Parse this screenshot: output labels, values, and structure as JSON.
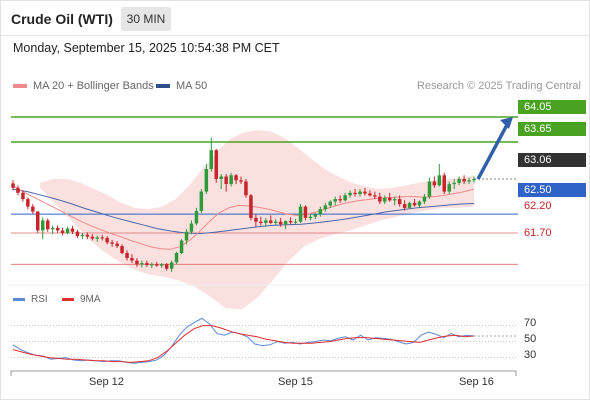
{
  "header": {
    "instrument": "Crude Oil (WTI)",
    "timeframe": "30 MIN",
    "datetime": "Monday, September 15, 2025 10:54:38 PM CET"
  },
  "legend": {
    "ma20_bb": "MA 20 + Bollinger Bands",
    "ma50": "MA 50",
    "credit": "Research © 2025 Trading Central"
  },
  "colors": {
    "up": "#2e9a3a",
    "down": "#c8242c",
    "bollinger": "#f7c6c6",
    "ma20": "#f08a8a",
    "ma50": "#4b66a8",
    "resistance": "#4aa320",
    "pivot": "#2f63c8",
    "support": "#e06a6a",
    "current": "#333333",
    "forecast_arrow": "#2f5fa8",
    "rsi": "#5b8ad8",
    "rsi_ma": "#e03030"
  },
  "levels": {
    "r2": "64.05",
    "r1": "63.65",
    "current": "63.06",
    "pivot": "62.50",
    "s1": "62.20",
    "s2": "61.70"
  },
  "indicator": {
    "rsi_label": "RSI",
    "ma_label": "9MA",
    "levels": [
      "70",
      "50",
      "30"
    ]
  },
  "xaxis": {
    "labels": [
      "Sep 12",
      "Sep 15",
      "Sep 16"
    ]
  },
  "chart_data": {
    "type": "candlestick",
    "title": "Crude Oil (WTI)",
    "timeframe": "30 MIN",
    "ylim": [
      61.45,
      64.4
    ],
    "candles": [
      [
        62.99,
        63.04,
        62.88,
        62.92
      ],
      [
        62.92,
        62.96,
        62.8,
        62.84
      ],
      [
        62.84,
        62.88,
        62.7,
        62.74
      ],
      [
        62.74,
        62.77,
        62.58,
        62.62
      ],
      [
        62.62,
        62.66,
        62.5,
        62.54
      ],
      [
        62.54,
        62.55,
        62.2,
        62.24
      ],
      [
        62.24,
        62.45,
        62.1,
        62.4
      ],
      [
        62.4,
        62.43,
        62.22,
        62.26
      ],
      [
        62.26,
        62.32,
        62.18,
        62.28
      ],
      [
        62.28,
        62.32,
        62.2,
        62.24
      ],
      [
        62.24,
        62.28,
        62.16,
        62.2
      ],
      [
        62.2,
        62.3,
        62.18,
        62.27
      ],
      [
        62.27,
        62.31,
        62.18,
        62.22
      ],
      [
        62.22,
        62.25,
        62.12,
        62.15
      ],
      [
        62.15,
        62.2,
        62.1,
        62.17
      ],
      [
        62.17,
        62.21,
        62.1,
        62.14
      ],
      [
        62.14,
        62.18,
        62.08,
        62.11
      ],
      [
        62.11,
        62.16,
        62.06,
        62.13
      ],
      [
        62.13,
        62.17,
        62.08,
        62.12
      ],
      [
        62.12,
        62.15,
        62.02,
        62.05
      ],
      [
        62.05,
        62.09,
        61.98,
        62.03
      ],
      [
        62.03,
        62.07,
        61.96,
        61.99
      ],
      [
        61.99,
        62.02,
        61.86,
        61.88
      ],
      [
        61.88,
        61.92,
        61.76,
        61.8
      ],
      [
        61.8,
        61.86,
        61.72,
        61.76
      ],
      [
        61.76,
        61.8,
        61.66,
        61.7
      ],
      [
        61.7,
        61.76,
        61.65,
        61.72
      ],
      [
        61.72,
        61.76,
        61.66,
        61.69
      ],
      [
        61.69,
        61.73,
        61.64,
        61.7
      ],
      [
        61.7,
        61.74,
        61.66,
        61.68
      ],
      [
        61.68,
        61.72,
        61.64,
        61.7
      ],
      [
        61.7,
        61.72,
        61.6,
        61.63
      ],
      [
        61.63,
        61.76,
        61.58,
        61.73
      ],
      [
        61.73,
        61.9,
        61.7,
        61.88
      ],
      [
        61.88,
        62.1,
        61.86,
        62.08
      ],
      [
        62.08,
        62.26,
        62.02,
        62.22
      ],
      [
        62.22,
        62.4,
        62.18,
        62.35
      ],
      [
        62.35,
        62.6,
        62.32,
        62.55
      ],
      [
        62.55,
        62.9,
        62.52,
        62.86
      ],
      [
        62.86,
        63.3,
        62.82,
        63.22
      ],
      [
        63.22,
        63.72,
        63.18,
        63.52
      ],
      [
        63.52,
        63.54,
        63.0,
        63.06
      ],
      [
        63.06,
        63.14,
        62.9,
        63.1
      ],
      [
        63.1,
        63.14,
        62.86,
        62.98
      ],
      [
        62.98,
        63.16,
        62.94,
        63.12
      ],
      [
        63.12,
        63.14,
        62.98,
        63.04
      ],
      [
        63.04,
        63.1,
        62.98,
        63.02
      ],
      [
        63.02,
        63.06,
        62.76,
        62.8
      ],
      [
        62.8,
        62.82,
        62.4,
        62.44
      ],
      [
        62.44,
        62.5,
        62.3,
        62.38
      ],
      [
        62.38,
        62.46,
        62.32,
        62.36
      ],
      [
        62.36,
        62.44,
        62.3,
        62.4
      ],
      [
        62.4,
        62.48,
        62.34,
        62.36
      ],
      [
        62.36,
        62.42,
        62.32,
        62.38
      ],
      [
        62.38,
        62.44,
        62.3,
        62.34
      ],
      [
        62.34,
        62.4,
        62.26,
        62.39
      ],
      [
        62.39,
        62.45,
        62.34,
        62.37
      ],
      [
        62.37,
        62.42,
        62.34,
        62.38
      ],
      [
        62.38,
        62.66,
        62.36,
        62.62
      ],
      [
        62.62,
        62.64,
        62.4,
        62.44
      ],
      [
        62.44,
        62.5,
        62.4,
        62.46
      ],
      [
        62.46,
        62.52,
        62.42,
        62.5
      ],
      [
        62.5,
        62.62,
        62.46,
        62.58
      ],
      [
        62.58,
        62.68,
        62.54,
        62.64
      ],
      [
        62.64,
        62.72,
        62.6,
        62.7
      ],
      [
        62.7,
        62.78,
        62.64,
        62.74
      ],
      [
        62.74,
        62.8,
        62.68,
        62.72
      ],
      [
        62.72,
        62.84,
        62.7,
        62.8
      ],
      [
        62.8,
        62.88,
        62.76,
        62.84
      ],
      [
        62.84,
        62.9,
        62.78,
        62.82
      ],
      [
        62.82,
        62.9,
        62.78,
        62.86
      ],
      [
        62.86,
        62.92,
        62.8,
        62.83
      ],
      [
        62.83,
        62.88,
        62.78,
        62.8
      ],
      [
        62.8,
        62.86,
        62.74,
        62.78
      ],
      [
        62.78,
        62.84,
        62.66,
        62.7
      ],
      [
        62.7,
        62.8,
        62.66,
        62.76
      ],
      [
        62.76,
        62.84,
        62.7,
        62.72
      ],
      [
        62.72,
        62.78,
        62.64,
        62.74
      ],
      [
        62.74,
        62.8,
        62.62,
        62.66
      ],
      [
        62.66,
        62.72,
        62.56,
        62.6
      ],
      [
        62.6,
        62.7,
        62.58,
        62.68
      ],
      [
        62.68,
        62.74,
        62.62,
        62.64
      ],
      [
        62.64,
        62.72,
        62.6,
        62.7
      ],
      [
        62.7,
        62.82,
        62.66,
        62.78
      ],
      [
        62.78,
        63.08,
        62.74,
        63.02
      ],
      [
        63.02,
        63.1,
        62.92,
        62.96
      ],
      [
        62.96,
        63.3,
        62.94,
        63.12
      ],
      [
        63.12,
        63.16,
        62.82,
        62.86
      ],
      [
        62.86,
        63.02,
        62.82,
        62.98
      ],
      [
        62.98,
        63.06,
        62.9,
        63.0
      ],
      [
        63.0,
        63.1,
        62.96,
        63.06
      ],
      [
        63.06,
        63.12,
        62.98,
        63.02
      ],
      [
        63.02,
        63.08,
        62.98,
        63.04
      ],
      [
        63.04,
        63.1,
        63.0,
        63.06
      ]
    ],
    "ma20": [
      62.95,
      62.86,
      62.78,
      62.7,
      62.62,
      62.54,
      62.46,
      62.38,
      62.31,
      62.25,
      62.19,
      62.14,
      62.08,
      62.03,
      61.98,
      61.95,
      61.94,
      61.98,
      62.08,
      62.22,
      62.38,
      62.52,
      62.6,
      62.64,
      62.63,
      62.61,
      62.58,
      62.54,
      62.5,
      62.48,
      62.5,
      62.54,
      62.59,
      62.64,
      62.68,
      62.71,
      62.73,
      62.75,
      62.76,
      62.77,
      62.78,
      62.78,
      62.77,
      62.78,
      62.8,
      62.83,
      62.86,
      62.9
    ],
    "ma50": [
      62.9,
      62.86,
      62.8,
      62.74,
      62.67,
      62.59,
      62.52,
      62.45,
      62.39,
      62.33,
      62.27,
      62.23,
      62.2,
      62.19,
      62.21,
      62.24,
      62.27,
      62.3,
      62.32,
      62.33,
      62.34,
      62.36,
      62.39,
      62.42,
      62.46,
      62.5,
      62.54,
      62.57,
      62.6,
      62.62,
      62.64,
      62.66,
      62.67
    ],
    "bollinger_upper": [
      63.0,
      63.06,
      63.06,
      63.0,
      62.9,
      62.8,
      62.68,
      62.6,
      62.58,
      62.62,
      62.74,
      62.96,
      63.22,
      63.48,
      63.7,
      63.8,
      63.84,
      63.82,
      63.72,
      63.56,
      63.38,
      63.22,
      63.1,
      63.0,
      62.94,
      62.9,
      62.92,
      62.96,
      63.0,
      63.04,
      63.06,
      63.08,
      63.12
    ],
    "bollinger_lower": [
      62.92,
      62.66,
      62.4,
      62.14,
      61.92,
      61.76,
      61.62,
      61.54,
      61.5,
      61.44,
      61.34,
      61.18,
      61.0,
      60.98,
      61.16,
      61.44,
      61.74,
      61.98,
      62.1,
      62.18,
      62.24,
      62.32,
      62.4,
      62.46,
      62.52,
      62.56,
      62.6,
      62.6,
      62.62
    ],
    "levels": {
      "r2": 64.05,
      "r1": 63.65,
      "current": 63.06,
      "pivot": 62.5,
      "s1": 62.2,
      "s2": 61.7
    },
    "forecast": {
      "from": 63.06,
      "to": 64.05
    },
    "rsi_ylim": [
      17,
      87
    ],
    "rsi_gridlines": [
      70,
      50,
      30
    ],
    "rsi": [
      46,
      40,
      36,
      33,
      32,
      28,
      29,
      30,
      27,
      26,
      27,
      26,
      25,
      26,
      26,
      24,
      23,
      24,
      25,
      27,
      33,
      44,
      58,
      68,
      74,
      79,
      72,
      60,
      58,
      62,
      60,
      56,
      47,
      45,
      46,
      50,
      48,
      49,
      47,
      49,
      50,
      52,
      51,
      54,
      56,
      52,
      58,
      52,
      55,
      54,
      53,
      50,
      47,
      49,
      58,
      62,
      59,
      55,
      60,
      56,
      58,
      57
    ],
    "rsi_ma": [
      40,
      37,
      34,
      32,
      30,
      29,
      28,
      28,
      27,
      26,
      26,
      25,
      25,
      24,
      25,
      26,
      30,
      38,
      48,
      58,
      66,
      70,
      70,
      67,
      63,
      60,
      58,
      56,
      53,
      51,
      49,
      48,
      48,
      48,
      49,
      50,
      52,
      54,
      55,
      55,
      54,
      53,
      52,
      51,
      50,
      49,
      52,
      55,
      57,
      58,
      56,
      57
    ],
    "x_tick_labels": [
      "Sep 12",
      "Sep 15",
      "Sep 16"
    ]
  }
}
